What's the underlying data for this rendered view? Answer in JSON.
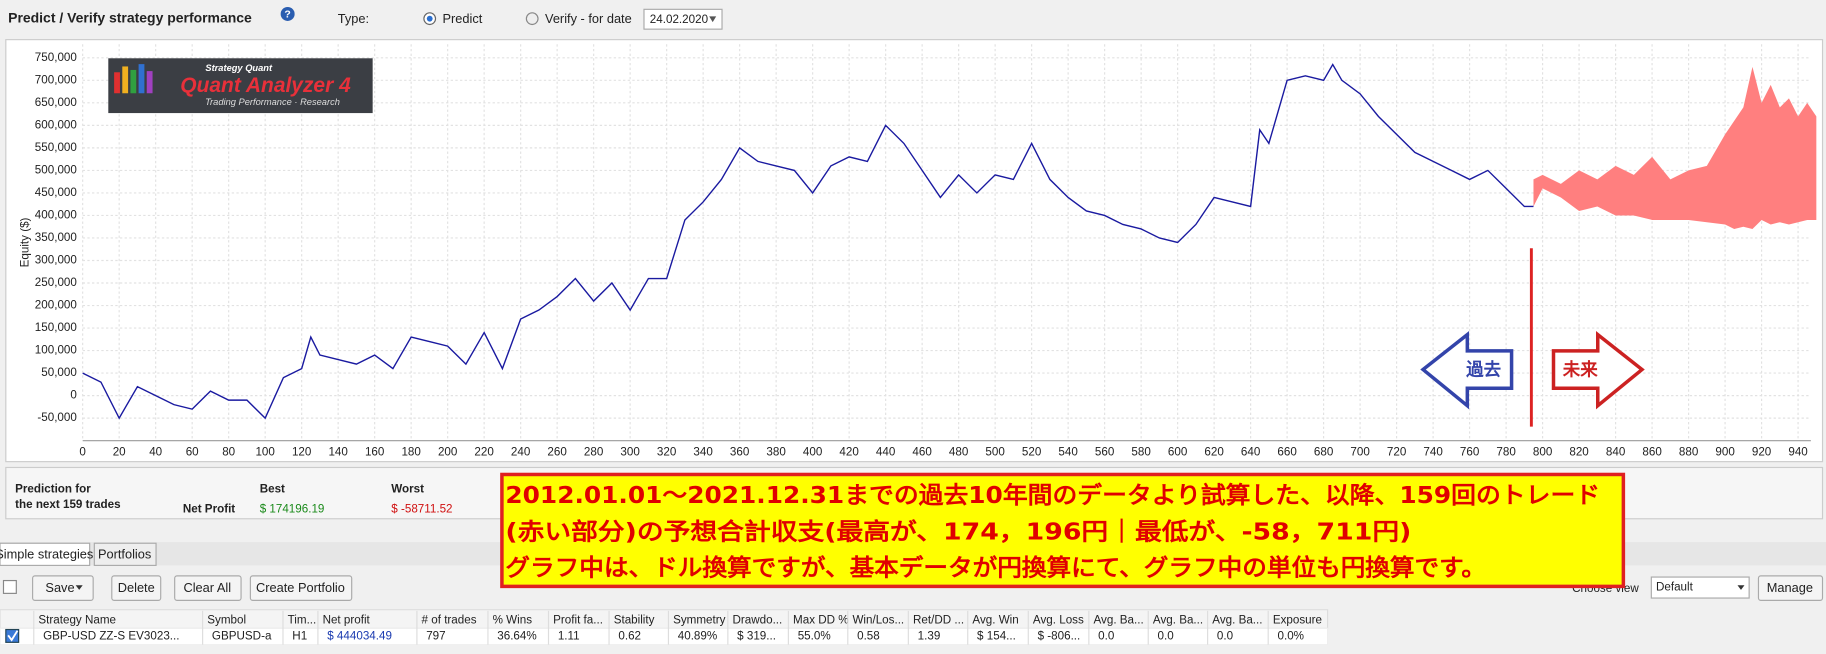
{
  "header": {
    "title": "Predict / Verify strategy performance",
    "type_label": "Type:",
    "options": [
      "Predict",
      "Verify - for date"
    ],
    "date": "24.02.2020"
  },
  "chart_data": {
    "type": "line",
    "y_label": "Equity ($)",
    "color": "#1a1aa0",
    "x": [
      0,
      10,
      20,
      30,
      40,
      50,
      60,
      70,
      80,
      90,
      100,
      110,
      120,
      125,
      130,
      140,
      150,
      160,
      170,
      180,
      190,
      200,
      210,
      220,
      230,
      240,
      250,
      260,
      270,
      280,
      290,
      300,
      310,
      320,
      330,
      340,
      350,
      360,
      370,
      380,
      390,
      400,
      410,
      420,
      430,
      440,
      450,
      460,
      470,
      480,
      490,
      500,
      510,
      520,
      530,
      540,
      550,
      560,
      570,
      580,
      590,
      600,
      610,
      620,
      630,
      640,
      645,
      650,
      660,
      670,
      680,
      685,
      690,
      700,
      710,
      720,
      730,
      740,
      750,
      760,
      770,
      780,
      790,
      795
    ],
    "values": [
      50000,
      30000,
      -50000,
      20000,
      0,
      -20000,
      -30000,
      10000,
      -10000,
      -10000,
      -50000,
      40000,
      60000,
      130000,
      90000,
      80000,
      70000,
      90000,
      60000,
      130000,
      120000,
      110000,
      70000,
      140000,
      60000,
      170000,
      190000,
      220000,
      260000,
      210000,
      250000,
      190000,
      260000,
      260000,
      390000,
      430000,
      480000,
      550000,
      520000,
      510000,
      500000,
      450000,
      510000,
      530000,
      520000,
      600000,
      560000,
      500000,
      440000,
      490000,
      450000,
      490000,
      480000,
      560000,
      480000,
      440000,
      410000,
      400000,
      380000,
      370000,
      350000,
      340000,
      380000,
      440000,
      430000,
      420000,
      590000,
      560000,
      700000,
      710000,
      700000,
      735000,
      700000,
      670000,
      620000,
      580000,
      540000,
      520000,
      500000,
      480000,
      500000,
      460000,
      420000,
      420000
    ],
    "band": {
      "color": "#ff7f7f",
      "x": [
        795,
        800,
        810,
        820,
        830,
        840,
        850,
        860,
        870,
        880,
        890,
        900,
        905,
        910,
        915,
        920,
        925,
        930,
        935,
        940,
        945,
        950
      ],
      "high": [
        480000,
        490000,
        470000,
        500000,
        480000,
        510000,
        490000,
        530000,
        480000,
        500000,
        510000,
        580000,
        610000,
        640000,
        730000,
        650000,
        690000,
        640000,
        660000,
        620000,
        650000,
        620000
      ],
      "low": [
        420000,
        460000,
        440000,
        410000,
        420000,
        400000,
        400000,
        390000,
        390000,
        390000,
        385000,
        380000,
        370000,
        375000,
        370000,
        390000,
        380000,
        385000,
        380000,
        385000,
        390000,
        390000
      ]
    },
    "xlim": [
      0,
      947
    ],
    "ylim": [
      -100000,
      780000
    ],
    "xticks": [
      0,
      20,
      40,
      60,
      80,
      100,
      120,
      140,
      160,
      180,
      200,
      220,
      240,
      260,
      280,
      300,
      320,
      340,
      360,
      380,
      400,
      420,
      440,
      460,
      480,
      500,
      520,
      540,
      560,
      580,
      600,
      620,
      640,
      660,
      680,
      700,
      720,
      740,
      760,
      780,
      800,
      820,
      840,
      860,
      880,
      900,
      920,
      940
    ],
    "yticks": [
      {
        "value": -50000,
        "label": "-50,000"
      },
      0,
      {
        "value": 50000,
        "label": "50,000"
      },
      {
        "value": 100000,
        "label": "100,000"
      },
      {
        "value": 150000,
        "label": "150,000"
      },
      {
        "value": 200000,
        "label": "200,000"
      },
      {
        "value": 250000,
        "label": "250,000"
      },
      {
        "value": 300000,
        "label": "300,000"
      },
      {
        "value": 350000,
        "label": "350,000"
      },
      {
        "value": 400000,
        "label": "400,000"
      },
      {
        "value": 450000,
        "label": "450,000"
      },
      {
        "value": 500000,
        "label": "500,000"
      },
      {
        "value": 550000,
        "label": "550,000"
      },
      {
        "value": 600000,
        "label": "600,000"
      },
      {
        "value": 650000,
        "label": "650,000"
      },
      {
        "value": 700000,
        "label": "700,000"
      },
      {
        "value": 750000,
        "label": "750,000"
      }
    ],
    "grid": true
  },
  "logo": {
    "brand": "Strategy Quant",
    "name": "Quant Analyzer 4",
    "tagline": "Trading Performance · Research"
  },
  "annotations": {
    "past": "過去",
    "future": "未来",
    "note": [
      "2012.01.01～2021.12.31までの過去10年間のデータより試算した、以降、159回のトレード",
      "(赤い部分)の予想合計収支(最高が、174，196円｜最低が、-58，711円)",
      "グラフ中は、ドル換算ですが、基本データが円換算にて、グラフ中の単位も円換算です。"
    ]
  },
  "prediction": {
    "caption": [
      "Prediction for",
      "the next 159 trades"
    ],
    "columns": [
      "Best",
      "Worst"
    ],
    "row_label": "Net Profit",
    "values": [
      "$ 174196.19",
      "$ -58711.52"
    ]
  },
  "tabs": [
    "Simple strategies",
    "Portfolios"
  ],
  "toolbar": {
    "buttons": [
      "Save",
      "Delete",
      "Clear All",
      "Create Portfolio"
    ],
    "view_label": "Choose view",
    "view": "Default",
    "manage": "Manage"
  },
  "table": {
    "headers": [
      "Strategy Name",
      "Symbol",
      "Tim...",
      "Net profit",
      "# of trades",
      "% Wins",
      "Profit fa...",
      "Stability",
      "Symmetry",
      "Drawdo...",
      "Max DD %",
      "Win/Los...",
      "Ret/DD ...",
      "Avg. Win",
      "Avg. Loss",
      "Avg. Ba...",
      "Avg. Ba...",
      "Avg. Ba...",
      "Exposure"
    ],
    "rows": [
      [
        "GBP-USD   ZZ-S   EV3023...",
        "GBPUSD-a",
        "H1",
        "$ 444034.49",
        "797",
        "36.64%",
        "1.11",
        "0.62",
        "40.89%",
        "$ 319...",
        "55.0%",
        "0.58",
        "1.39",
        "$ 154...",
        "$ -806...",
        "0.0",
        "0.0",
        "0.0",
        "0.0%"
      ]
    ]
  }
}
